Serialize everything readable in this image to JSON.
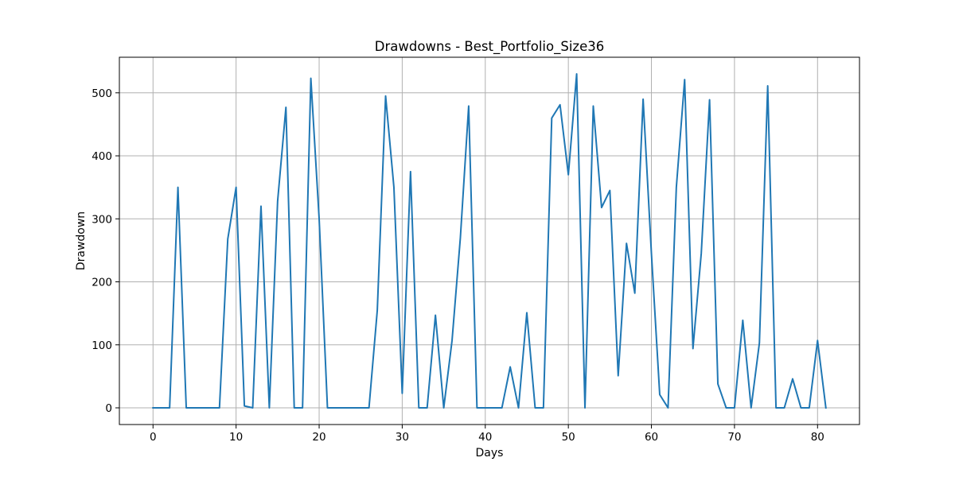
{
  "chart_data": {
    "type": "line",
    "title": "Drawdowns - Best_Portfolio_Size36",
    "xlabel": "Days",
    "ylabel": "Drawdown",
    "xlim": [
      -4.05,
      85.05
    ],
    "ylim": [
      -26.5,
      556.5
    ],
    "xticks": [
      0,
      10,
      20,
      30,
      40,
      50,
      60,
      70,
      80
    ],
    "yticks": [
      0,
      100,
      200,
      300,
      400,
      500
    ],
    "grid": true,
    "legend": "none",
    "series": [
      {
        "color": "#1f77b4",
        "x": [
          0,
          1,
          2,
          3,
          4,
          5,
          6,
          7,
          8,
          9,
          10,
          11,
          12,
          13,
          14,
          15,
          16,
          17,
          18,
          19,
          20,
          21,
          22,
          23,
          24,
          25,
          26,
          27,
          28,
          29,
          30,
          31,
          32,
          33,
          34,
          35,
          36,
          37,
          38,
          39,
          40,
          41,
          42,
          43,
          44,
          45,
          46,
          47,
          48,
          49,
          50,
          51,
          52,
          53,
          54,
          55,
          56,
          57,
          58,
          59,
          60,
          61,
          62,
          63,
          64,
          65,
          66,
          67,
          68,
          69,
          70,
          71,
          72,
          73,
          74,
          75,
          76,
          77,
          78,
          79,
          80,
          81
        ],
        "values": [
          0,
          0,
          0,
          350,
          0,
          0,
          0,
          0,
          0,
          268,
          350,
          3,
          0,
          320,
          0,
          328,
          477,
          0,
          0,
          523,
          300,
          0,
          0,
          0,
          0,
          0,
          0,
          155,
          495,
          350,
          23,
          375,
          0,
          0,
          147,
          0,
          107,
          270,
          479,
          0,
          0,
          0,
          0,
          65,
          0,
          151,
          0,
          0,
          460,
          481,
          370,
          530,
          0,
          479,
          318,
          345,
          51,
          261,
          182,
          490,
          245,
          21,
          0,
          350,
          521,
          94,
          245,
          489,
          38,
          0,
          0,
          139,
          0,
          103,
          511,
          0,
          0,
          46,
          0,
          0,
          107,
          0
        ]
      }
    ]
  }
}
